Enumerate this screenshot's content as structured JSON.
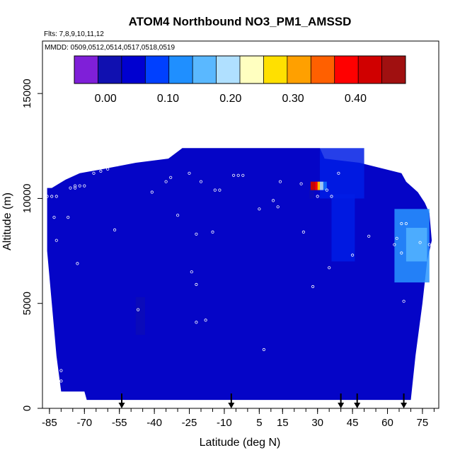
{
  "chart_data": {
    "type": "heatmap",
    "title": "ATOM4 Northbound NO3_PM1_AMSSD",
    "flights_label": "Flts: 7,8,9,10,11,12",
    "dates_label": "MMDD: 0509,0512,0514,0517,0518,0519",
    "xlabel": "Latitude (deg N)",
    "ylabel": "Altitude (m)",
    "xlim": [
      -88,
      82
    ],
    "ylim": [
      0,
      17500
    ],
    "x_ticks": [
      -85,
      -70,
      -55,
      -40,
      -25,
      -10,
      5,
      15,
      30,
      45,
      60,
      75
    ],
    "y_ticks": [
      0,
      5000,
      10000,
      15000
    ],
    "colorbar": {
      "range": [
        -0.05,
        0.48
      ],
      "ticks": [
        0.0,
        0.1,
        0.2,
        0.3,
        0.4
      ],
      "tick_labels": [
        "0.00",
        "0.10",
        "0.20",
        "0.30",
        "0.40"
      ],
      "colors": [
        "#7f1fd8",
        "#1010b0",
        "#0000d0",
        "#0040ff",
        "#1f8fff",
        "#5ab8ff",
        "#b0e0ff",
        "#ffffc0",
        "#ffe000",
        "#ffa000",
        "#ff6000",
        "#ff0000",
        "#d00000",
        "#a01010"
      ]
    },
    "background_value": 0.02,
    "envelope": [
      {
        "x": -86,
        "top": 10500
      },
      {
        "x": -84,
        "top": 10500
      },
      {
        "x": -78,
        "top": 10900
      },
      {
        "x": -72,
        "top": 11200
      },
      {
        "x": -62,
        "top": 11400
      },
      {
        "x": -48,
        "top": 11700
      },
      {
        "x": -34,
        "top": 11900
      },
      {
        "x": -28,
        "top": 12400
      },
      {
        "x": -6,
        "top": 12400
      },
      {
        "x": 18,
        "top": 12400
      },
      {
        "x": 31,
        "top": 12400
      },
      {
        "x": 33,
        "top": 11900
      },
      {
        "x": 48,
        "top": 11700
      },
      {
        "x": 66,
        "top": 11200
      },
      {
        "x": 68,
        "top": 10800
      },
      {
        "x": 73,
        "top": 10300
      },
      {
        "x": 76,
        "top": 9800
      },
      {
        "x": 78,
        "top": 9300
      },
      {
        "x": 79,
        "top": 8000
      }
    ],
    "bottom_edge": [
      {
        "x": -86,
        "bottom": 7500
      },
      {
        "x": -84,
        "bottom": 5000
      },
      {
        "x": -82,
        "bottom": 2500
      },
      {
        "x": -80,
        "bottom": 800
      },
      {
        "x": -70,
        "bottom": 800
      },
      {
        "x": -69,
        "bottom": 400
      },
      {
        "x": 70,
        "bottom": 400
      },
      {
        "x": 72,
        "bottom": 2500
      },
      {
        "x": 75,
        "bottom": 5000
      },
      {
        "x": 77,
        "bottom": 7000
      },
      {
        "x": 79,
        "bottom": 8000
      }
    ],
    "regions": [
      {
        "lat": [
          -48,
          -44
        ],
        "alt": [
          3500,
          5300
        ],
        "value": 0.0
      },
      {
        "lat": [
          31,
          50
        ],
        "alt": [
          10000,
          12400
        ],
        "value": 0.05
      },
      {
        "lat": [
          36,
          46
        ],
        "alt": [
          7000,
          10200
        ],
        "value": 0.05
      },
      {
        "lat": [
          63,
          78
        ],
        "alt": [
          6000,
          9500
        ],
        "value": 0.12
      },
      {
        "lat": [
          68,
          77
        ],
        "alt": [
          7000,
          8600
        ],
        "value": 0.15
      },
      {
        "lat": [
          26.5,
          28.5
        ],
        "alt": [
          10000,
          10400
        ],
        "value": 0.0
      },
      {
        "lat": [
          27,
          29
        ],
        "alt": [
          10400,
          10800
        ],
        "value": 0.45
      },
      {
        "lat": [
          29,
          30
        ],
        "alt": [
          10400,
          10800
        ],
        "value": 0.4
      },
      {
        "lat": [
          30,
          31
        ],
        "alt": [
          10400,
          10800
        ],
        "value": 0.3
      },
      {
        "lat": [
          31,
          32.5
        ],
        "alt": [
          10400,
          10800
        ],
        "value": 0.2
      },
      {
        "lat": [
          32.5,
          34
        ],
        "alt": [
          10400,
          10800
        ],
        "value": 0.1
      }
    ],
    "sample_points": [
      {
        "x": -86,
        "y": 10100
      },
      {
        "x": -84,
        "y": 10100
      },
      {
        "x": -82,
        "y": 10100
      },
      {
        "x": -76,
        "y": 10500
      },
      {
        "x": -74,
        "y": 10500
      },
      {
        "x": -72,
        "y": 10600
      },
      {
        "x": -70,
        "y": 10600
      },
      {
        "x": -66,
        "y": 11200
      },
      {
        "x": -63,
        "y": 11300
      },
      {
        "x": -60,
        "y": 11400
      },
      {
        "x": -56,
        "y": 11600
      },
      {
        "x": -41,
        "y": 10300
      },
      {
        "x": -35,
        "y": 10800
      },
      {
        "x": -33,
        "y": 11000
      },
      {
        "x": -25,
        "y": 11200
      },
      {
        "x": -20,
        "y": 10800
      },
      {
        "x": -14,
        "y": 10400
      },
      {
        "x": -12,
        "y": 10400
      },
      {
        "x": -6,
        "y": 11100
      },
      {
        "x": -4,
        "y": 11100
      },
      {
        "x": -2,
        "y": 11100
      },
      {
        "x": 14,
        "y": 10800
      },
      {
        "x": 23,
        "y": 10700
      },
      {
        "x": 34,
        "y": 10400
      },
      {
        "x": 36,
        "y": 10100
      },
      {
        "x": 39,
        "y": 11200
      },
      {
        "x": 74,
        "y": 11000
      },
      {
        "x": 71,
        "y": 10900
      },
      {
        "x": 69,
        "y": 10800
      },
      {
        "x": 76,
        "y": 10900
      },
      {
        "x": -83,
        "y": 9100
      },
      {
        "x": -77,
        "y": 9100
      },
      {
        "x": -57,
        "y": 8500
      },
      {
        "x": -22,
        "y": 8300
      },
      {
        "x": -15,
        "y": 8400
      },
      {
        "x": 5,
        "y": 9500
      },
      {
        "x": 11,
        "y": 9900
      },
      {
        "x": 24,
        "y": 8400
      },
      {
        "x": 30,
        "y": 10100
      },
      {
        "x": 68,
        "y": 8800
      },
      {
        "x": 66,
        "y": 8800
      },
      {
        "x": 64,
        "y": 8100
      },
      {
        "x": 63,
        "y": 7800
      },
      {
        "x": 66,
        "y": 7400
      },
      {
        "x": 74,
        "y": 7900
      },
      {
        "x": 78,
        "y": 7800
      },
      {
        "x": 35,
        "y": 6700
      },
      {
        "x": 52,
        "y": 8200
      },
      {
        "x": -73,
        "y": 6900
      },
      {
        "x": -24,
        "y": 6500
      },
      {
        "x": -22,
        "y": 5900
      },
      {
        "x": -47,
        "y": 4700
      },
      {
        "x": -22,
        "y": 4100
      },
      {
        "x": -18,
        "y": 4200
      },
      {
        "x": 7,
        "y": 2800
      },
      {
        "x": 28,
        "y": 5800
      },
      {
        "x": 67,
        "y": 5100
      },
      {
        "x": -80,
        "y": 1800
      },
      {
        "x": -80,
        "y": 1300
      },
      {
        "x": -18,
        "y": 100
      },
      {
        "x": 47,
        "y": 100
      },
      {
        "x": -82,
        "y": 8000
      },
      {
        "x": -74,
        "y": 10600
      },
      {
        "x": -30,
        "y": 9200
      },
      {
        "x": 13,
        "y": 9600
      },
      {
        "x": 45,
        "y": 7300
      }
    ],
    "flight_markers": [
      -54,
      -7,
      40,
      47,
      67
    ]
  }
}
